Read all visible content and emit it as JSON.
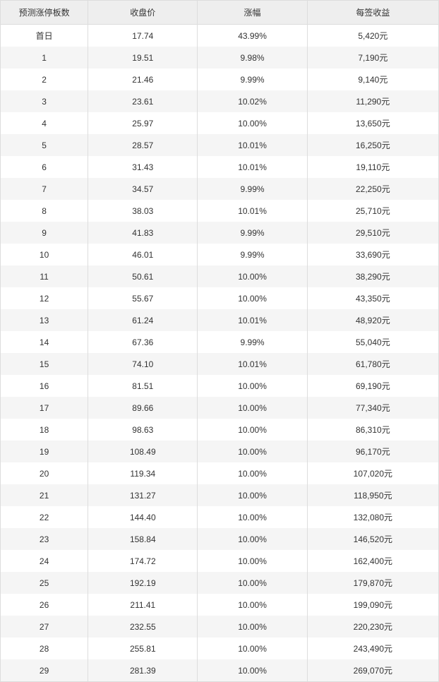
{
  "table": {
    "columns": [
      "预测涨停板数",
      "收盘价",
      "涨幅",
      "每签收益"
    ],
    "column_widths": [
      "20%",
      "25%",
      "25%",
      "30%"
    ],
    "header_bg": "#eeeeee",
    "row_bg_odd": "#ffffff",
    "row_bg_even": "#f5f5f5",
    "border_color": "#dddddd",
    "text_color": "#333333",
    "font_size": 12,
    "rows": [
      {
        "num": "首日",
        "close": "17.74",
        "pct": "43.99%",
        "profit": "5,420元"
      },
      {
        "num": "1",
        "close": "19.51",
        "pct": "9.98%",
        "profit": "7,190元"
      },
      {
        "num": "2",
        "close": "21.46",
        "pct": "9.99%",
        "profit": "9,140元"
      },
      {
        "num": "3",
        "close": "23.61",
        "pct": "10.02%",
        "profit": "11,290元"
      },
      {
        "num": "4",
        "close": "25.97",
        "pct": "10.00%",
        "profit": "13,650元"
      },
      {
        "num": "5",
        "close": "28.57",
        "pct": "10.01%",
        "profit": "16,250元"
      },
      {
        "num": "6",
        "close": "31.43",
        "pct": "10.01%",
        "profit": "19,110元"
      },
      {
        "num": "7",
        "close": "34.57",
        "pct": "9.99%",
        "profit": "22,250元"
      },
      {
        "num": "8",
        "close": "38.03",
        "pct": "10.01%",
        "profit": "25,710元"
      },
      {
        "num": "9",
        "close": "41.83",
        "pct": "9.99%",
        "profit": "29,510元"
      },
      {
        "num": "10",
        "close": "46.01",
        "pct": "9.99%",
        "profit": "33,690元"
      },
      {
        "num": "11",
        "close": "50.61",
        "pct": "10.00%",
        "profit": "38,290元"
      },
      {
        "num": "12",
        "close": "55.67",
        "pct": "10.00%",
        "profit": "43,350元"
      },
      {
        "num": "13",
        "close": "61.24",
        "pct": "10.01%",
        "profit": "48,920元"
      },
      {
        "num": "14",
        "close": "67.36",
        "pct": "9.99%",
        "profit": "55,040元"
      },
      {
        "num": "15",
        "close": "74.10",
        "pct": "10.01%",
        "profit": "61,780元"
      },
      {
        "num": "16",
        "close": "81.51",
        "pct": "10.00%",
        "profit": "69,190元"
      },
      {
        "num": "17",
        "close": "89.66",
        "pct": "10.00%",
        "profit": "77,340元"
      },
      {
        "num": "18",
        "close": "98.63",
        "pct": "10.00%",
        "profit": "86,310元"
      },
      {
        "num": "19",
        "close": "108.49",
        "pct": "10.00%",
        "profit": "96,170元"
      },
      {
        "num": "20",
        "close": "119.34",
        "pct": "10.00%",
        "profit": "107,020元"
      },
      {
        "num": "21",
        "close": "131.27",
        "pct": "10.00%",
        "profit": "118,950元"
      },
      {
        "num": "22",
        "close": "144.40",
        "pct": "10.00%",
        "profit": "132,080元"
      },
      {
        "num": "23",
        "close": "158.84",
        "pct": "10.00%",
        "profit": "146,520元"
      },
      {
        "num": "24",
        "close": "174.72",
        "pct": "10.00%",
        "profit": "162,400元"
      },
      {
        "num": "25",
        "close": "192.19",
        "pct": "10.00%",
        "profit": "179,870元"
      },
      {
        "num": "26",
        "close": "211.41",
        "pct": "10.00%",
        "profit": "199,090元"
      },
      {
        "num": "27",
        "close": "232.55",
        "pct": "10.00%",
        "profit": "220,230元"
      },
      {
        "num": "28",
        "close": "255.81",
        "pct": "10.00%",
        "profit": "243,490元"
      },
      {
        "num": "29",
        "close": "281.39",
        "pct": "10.00%",
        "profit": "269,070元"
      }
    ]
  }
}
